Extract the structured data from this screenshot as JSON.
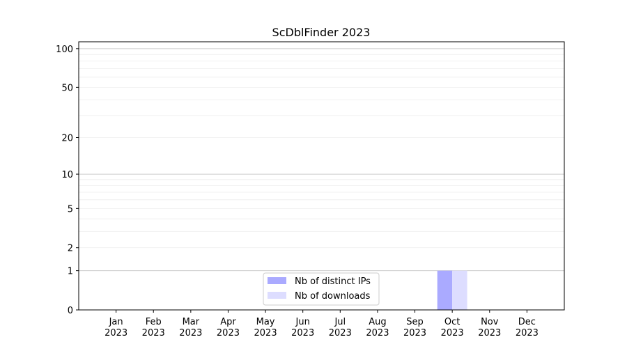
{
  "chart_data": {
    "type": "bar",
    "title": "ScDblFinder 2023",
    "xlabel": "",
    "ylabel": "",
    "y_scale": "log10(1+y)",
    "ylim": [
      0,
      113
    ],
    "grid": true,
    "categories": [
      "Jan\n2023",
      "Feb\n2023",
      "Mar\n2023",
      "Apr\n2023",
      "May\n2023",
      "Jun\n2023",
      "Jul\n2023",
      "Aug\n2023",
      "Sep\n2023",
      "Oct\n2023",
      "Nov\n2023",
      "Dec\n2023"
    ],
    "y_ticks": [
      0,
      1,
      2,
      5,
      10,
      20,
      50,
      100
    ],
    "series": [
      {
        "name": "Nb of distinct IPs",
        "color": "#aaaaff",
        "values": [
          0,
          0,
          0,
          0,
          0,
          0,
          0,
          0,
          0,
          1,
          0,
          0
        ]
      },
      {
        "name": "Nb of downloads",
        "color": "#ddddff",
        "values": [
          0,
          0,
          0,
          0,
          0,
          0,
          0,
          0,
          0,
          1,
          0,
          0
        ]
      }
    ],
    "legend_position": "lower-center"
  }
}
